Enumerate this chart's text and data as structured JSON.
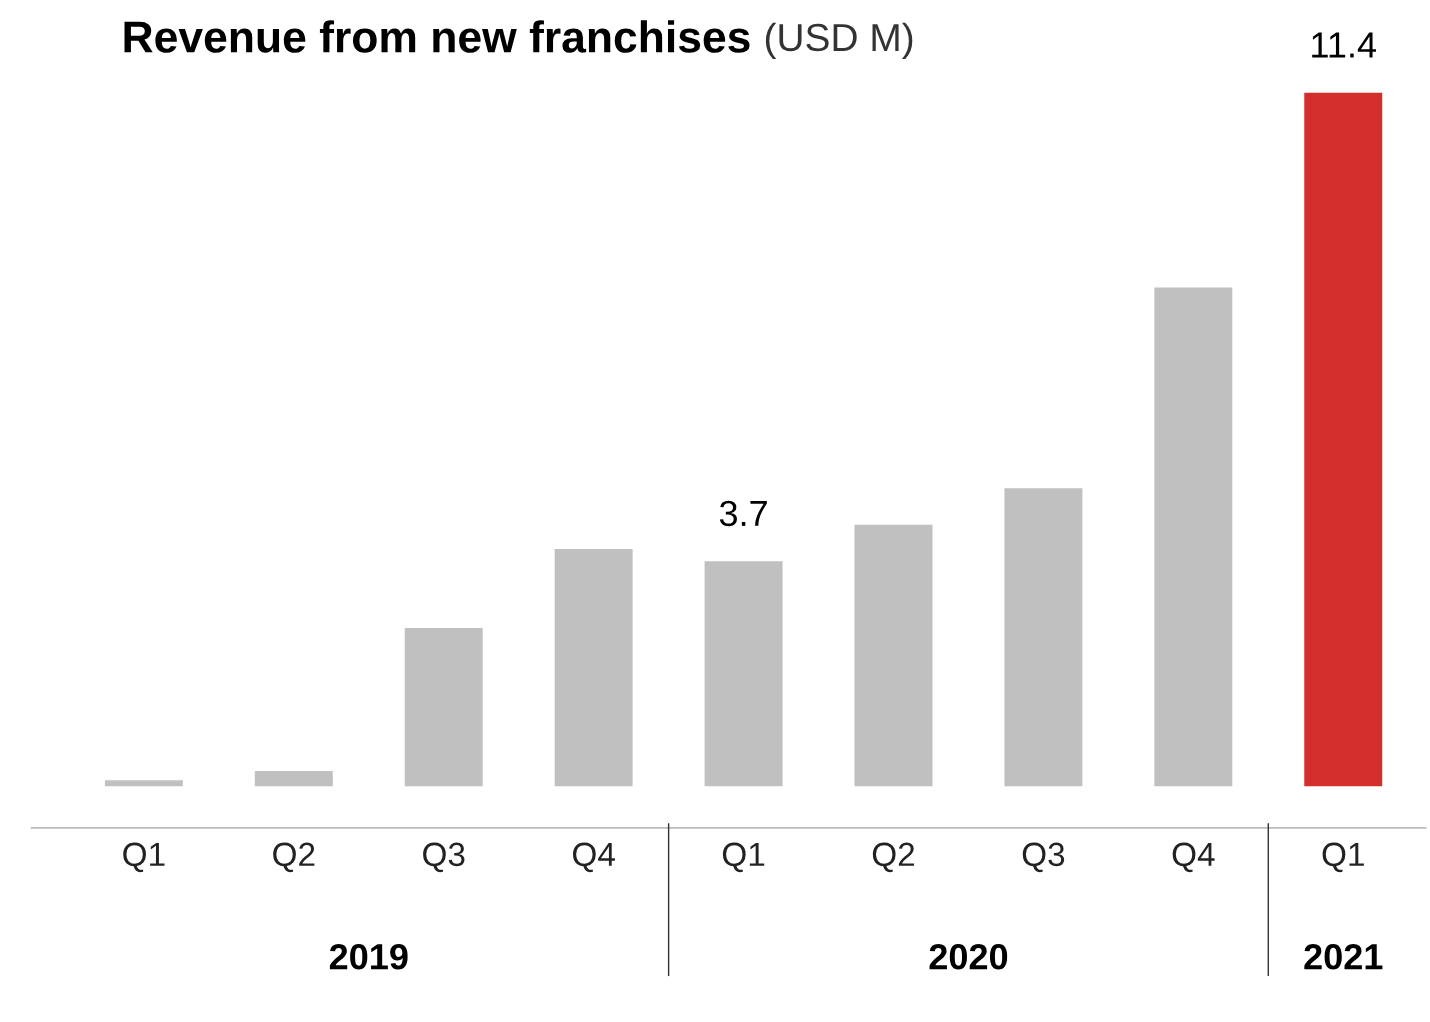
{
  "chart_data": {
    "type": "bar",
    "title": "Revenue from new franchises",
    "subtitle": "(USD M)",
    "categories": [
      "Q1",
      "Q2",
      "Q3",
      "Q4",
      "Q1",
      "Q2",
      "Q3",
      "Q4",
      "Q1"
    ],
    "values": [
      0.1,
      0.25,
      2.6,
      3.9,
      3.7,
      4.3,
      4.9,
      8.2,
      11.4
    ],
    "colors": [
      "#c0c0c0",
      "#c0c0c0",
      "#c0c0c0",
      "#c0c0c0",
      "#c0c0c0",
      "#c0c0c0",
      "#c0c0c0",
      "#c0c0c0",
      "#d22e2b"
    ],
    "value_labels": [
      null,
      null,
      null,
      null,
      "3.7",
      null,
      null,
      null,
      "11.4"
    ],
    "annotations": [
      "2019",
      "2020",
      "2021"
    ],
    "tick_labels": "x",
    "grid": false
  }
}
